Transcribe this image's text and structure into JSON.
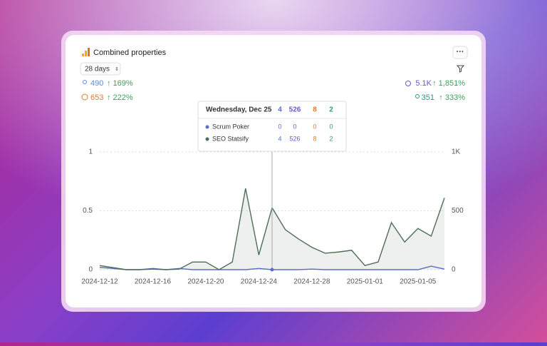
{
  "header": {
    "title": "Combined properties",
    "range": "28 days"
  },
  "stats": {
    "left": [
      {
        "value": "490",
        "change": "↑ 169%"
      },
      {
        "value": "653",
        "change": "↑ 222%"
      }
    ],
    "right": [
      {
        "value": "5.1K",
        "change": "↑ 1,851%"
      },
      {
        "value": "351",
        "change": "↑ 333%"
      }
    ]
  },
  "tooltip": {
    "date": "Wednesday, Dec 25",
    "totals": [
      "4",
      "526",
      "8",
      "2"
    ],
    "rows": [
      [
        "0",
        "0",
        "0",
        "0"
      ],
      [
        "4",
        "526",
        "8",
        "2"
      ]
    ]
  },
  "chart_data": {
    "type": "line",
    "categories": [
      "2024-12-12",
      null,
      null,
      null,
      "2024-12-16",
      null,
      null,
      null,
      "2024-12-20",
      null,
      null,
      null,
      "2024-12-24",
      null,
      null,
      null,
      "2024-12-28",
      null,
      null,
      null,
      "2025-01-01",
      null,
      null,
      null,
      "2025-01-05",
      null,
      null
    ],
    "series": [
      {
        "name": "Scrum Poker",
        "color": "#5b6fc8",
        "axis": "y2",
        "values": [
          20,
          10,
          0,
          0,
          10,
          0,
          10,
          0,
          0,
          0,
          0,
          0,
          10,
          0,
          0,
          0,
          5,
          0,
          0,
          0,
          0,
          0,
          0,
          0,
          0,
          30,
          5
        ]
      },
      {
        "name": "SEO Statsify",
        "color": "#4f6e55",
        "axis": "y2",
        "values": [
          35,
          18,
          0,
          0,
          5,
          0,
          5,
          65,
          65,
          0,
          65,
          690,
          125,
          526,
          340,
          260,
          190,
          140,
          150,
          165,
          35,
          65,
          400,
          235,
          350,
          285,
          610
        ]
      }
    ],
    "ylim": [
      0,
      1
    ],
    "yticks": [
      0,
      0.5,
      1
    ],
    "y2lim": [
      0,
      1000
    ],
    "y2ticks": [
      0,
      500,
      {
        "value": 1000,
        "label": "1K"
      }
    ],
    "grid": true
  }
}
